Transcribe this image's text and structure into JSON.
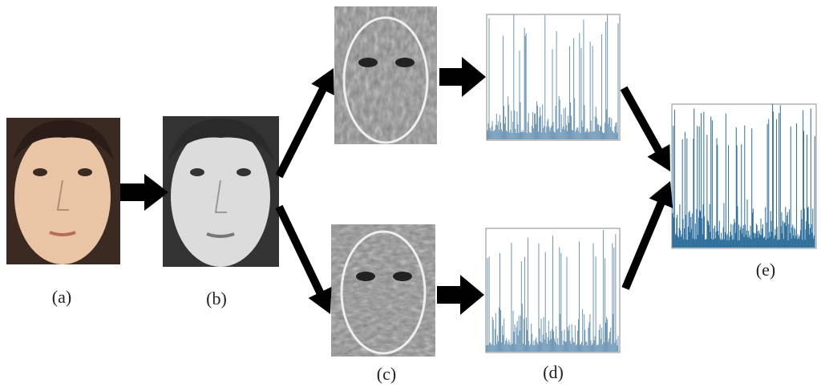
{
  "labels": [
    "(a)",
    "(b)",
    "(c)",
    "(d)",
    "(e)"
  ]
}
